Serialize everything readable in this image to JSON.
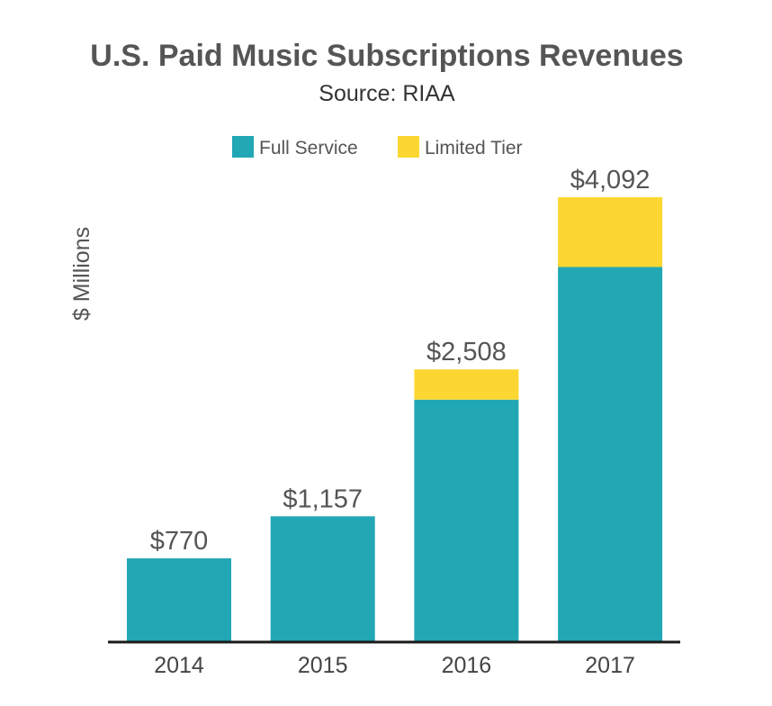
{
  "chart_data": {
    "type": "bar",
    "stacked": true,
    "title": "U.S. Paid Music Subscriptions Revenues",
    "subtitle": "Source: RIAA",
    "xlabel": "",
    "ylabel": "$ Millions",
    "ylim": [
      0,
      4500
    ],
    "grid": false,
    "legend_position": "top-center",
    "categories": [
      "2014",
      "2015",
      "2016",
      "2017"
    ],
    "series": [
      {
        "name": "Full Service",
        "color": "#22a7b5",
        "values": [
          770,
          1157,
          2230,
          3450
        ]
      },
      {
        "name": "Limited Tier",
        "color": "#fcd732",
        "values": [
          0,
          0,
          278,
          642
        ]
      }
    ],
    "totals": [
      770,
      1157,
      2508,
      4092
    ],
    "total_labels": [
      "$770",
      "$1,157",
      "$2,508",
      "$4,092"
    ],
    "axis_color": "#1a1a1a"
  }
}
